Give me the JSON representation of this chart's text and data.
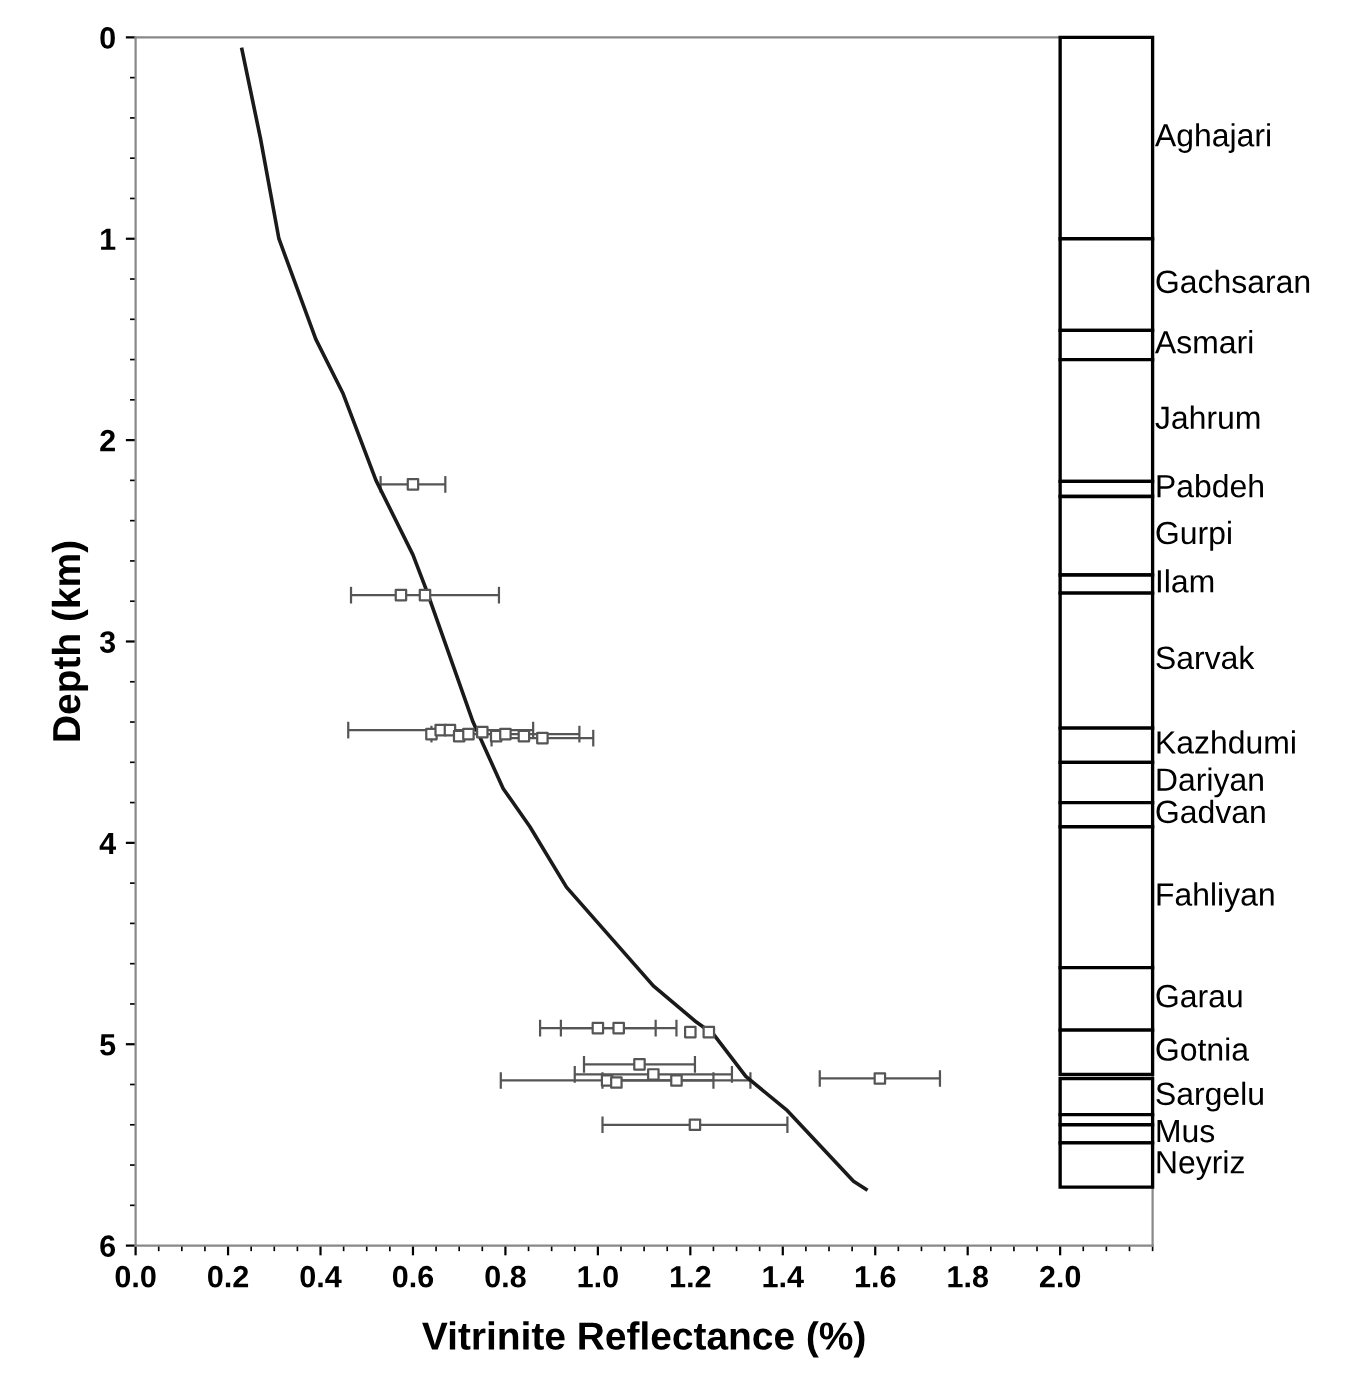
{
  "chart_data": {
    "type": "scatter",
    "xlabel": "Vitrinite Reflectance (%)",
    "ylabel": "Depth (km)",
    "xlim": [
      0,
      2.2
    ],
    "ylim": [
      6,
      0
    ],
    "xticks": [
      {
        "value": 0,
        "label": "0.0"
      },
      {
        "value": 0.2,
        "label": "0.2"
      },
      {
        "value": 0.4,
        "label": "0.4"
      },
      {
        "value": 0.6,
        "label": "0.6"
      },
      {
        "value": 0.8,
        "label": "0.8"
      },
      {
        "value": 1.0,
        "label": "1.0"
      },
      {
        "value": 1.2,
        "label": "1.2"
      },
      {
        "value": 1.4,
        "label": "1.4"
      },
      {
        "value": 1.6,
        "label": "1.6"
      },
      {
        "value": 1.8,
        "label": "1.8"
      },
      {
        "value": 2.0,
        "label": "2.0"
      }
    ],
    "yticks": [
      0,
      1,
      2,
      3,
      4,
      5,
      6
    ],
    "grid": false,
    "legend": false,
    "series": [
      {
        "type": "line",
        "color": "#1a1a1a",
        "line_style": "solid",
        "marker": "none",
        "x": [
          0.23,
          0.27,
          0.31,
          0.39,
          0.449,
          0.52,
          0.6,
          0.63,
          0.73,
          0.795,
          0.853,
          0.932,
          1.12,
          1.213,
          1.25,
          1.32,
          1.41,
          1.553,
          1.58
        ],
        "values": [
          0.06,
          0.5,
          1.0,
          1.5,
          1.77,
          2.2,
          2.57,
          2.75,
          3.4,
          3.73,
          3.92,
          4.22,
          4.71,
          4.89,
          4.95,
          5.16,
          5.33,
          5.68,
          5.72
        ]
      },
      {
        "color": "#555555",
        "marker": "square",
        "x": [
          0.6,
          0.574,
          0.626,
          0.64,
          0.66,
          0.68,
          0.7,
          0.72,
          0.75,
          0.78,
          0.8,
          0.84,
          0.88,
          1.0,
          1.045,
          1.2,
          1.24,
          1.09,
          1.12,
          1.02,
          1.04,
          1.17,
          1.61,
          1.21
        ],
        "values": [
          2.22,
          2.77,
          2.77,
          3.46,
          3.44,
          3.44,
          3.47,
          3.46,
          3.45,
          3.47,
          3.46,
          3.47,
          3.48,
          4.92,
          4.92,
          4.94,
          4.94,
          5.1,
          5.15,
          5.18,
          5.19,
          5.18,
          5.17,
          5.4
        ],
        "xerrors": [
          0.07,
          null,
          0.16,
          null,
          0.2,
          null,
          null,
          null,
          null,
          null,
          0.16,
          null,
          0.11,
          0.125,
          0.125,
          null,
          null,
          0.12,
          0.17,
          0.23,
          null,
          0.16,
          0.13,
          0.2
        ]
      }
    ],
    "bands": [
      {
        "axis": "y",
        "from": 0,
        "to": 1.0,
        "label": "Aghajari",
        "color": "#ffffff"
      },
      {
        "axis": "y",
        "from": 1.0,
        "to": 1.455,
        "label": "Gachsaran",
        "color": "#ffffff"
      },
      {
        "axis": "y",
        "from": 1.455,
        "to": 1.6,
        "label": "Asmari",
        "color": "#ffffff"
      },
      {
        "axis": "y",
        "from": 1.6,
        "to": 2.205,
        "label": "Jahrum",
        "color": "#ffffff"
      },
      {
        "axis": "y",
        "from": 2.205,
        "to": 2.28,
        "label": "Pabdeh",
        "color": "#ffffff"
      },
      {
        "axis": "y",
        "from": 2.28,
        "to": 2.67,
        "label": "Gurpi",
        "color": "#ffffff"
      },
      {
        "axis": "y",
        "from": 2.67,
        "to": 2.76,
        "label": "Ilam",
        "color": "#ffffff"
      },
      {
        "axis": "y",
        "from": 2.76,
        "to": 3.43,
        "label": "Sarvak",
        "color": "#ffffff"
      },
      {
        "axis": "y",
        "from": 3.43,
        "to": 3.6,
        "label": "Kazhdumi",
        "color": "#ffffff"
      },
      {
        "axis": "y",
        "from": 3.6,
        "to": 3.8,
        "label": "Dariyan",
        "color": "#ffffff"
      },
      {
        "axis": "y",
        "from": 3.8,
        "to": 3.92,
        "label": "Gadvan",
        "color": "#ffffff"
      },
      {
        "axis": "y",
        "from": 3.92,
        "to": 4.62,
        "label": "Fahliyan",
        "color": "#ffffff"
      },
      {
        "axis": "y",
        "from": 4.62,
        "to": 4.93,
        "label": "Garau",
        "color": "#ffffff"
      },
      {
        "axis": "y",
        "from": 4.93,
        "to": 5.15,
        "label": "Gotnia",
        "color": "#ffffff"
      },
      {
        "axis": "y",
        "from": 5.17,
        "to": 5.35,
        "label": "Sargelu",
        "color": "#ffffff"
      },
      {
        "axis": "y",
        "from": 5.35,
        "to": 5.4,
        "label": null,
        "color": "#ffffff"
      },
      {
        "axis": "y",
        "from": 5.4,
        "to": 5.49,
        "label": "Mus",
        "color": "#ffffff"
      },
      {
        "axis": "y",
        "from": 5.49,
        "to": 5.71,
        "label": "Neyriz",
        "color": "#ffffff"
      }
    ]
  }
}
